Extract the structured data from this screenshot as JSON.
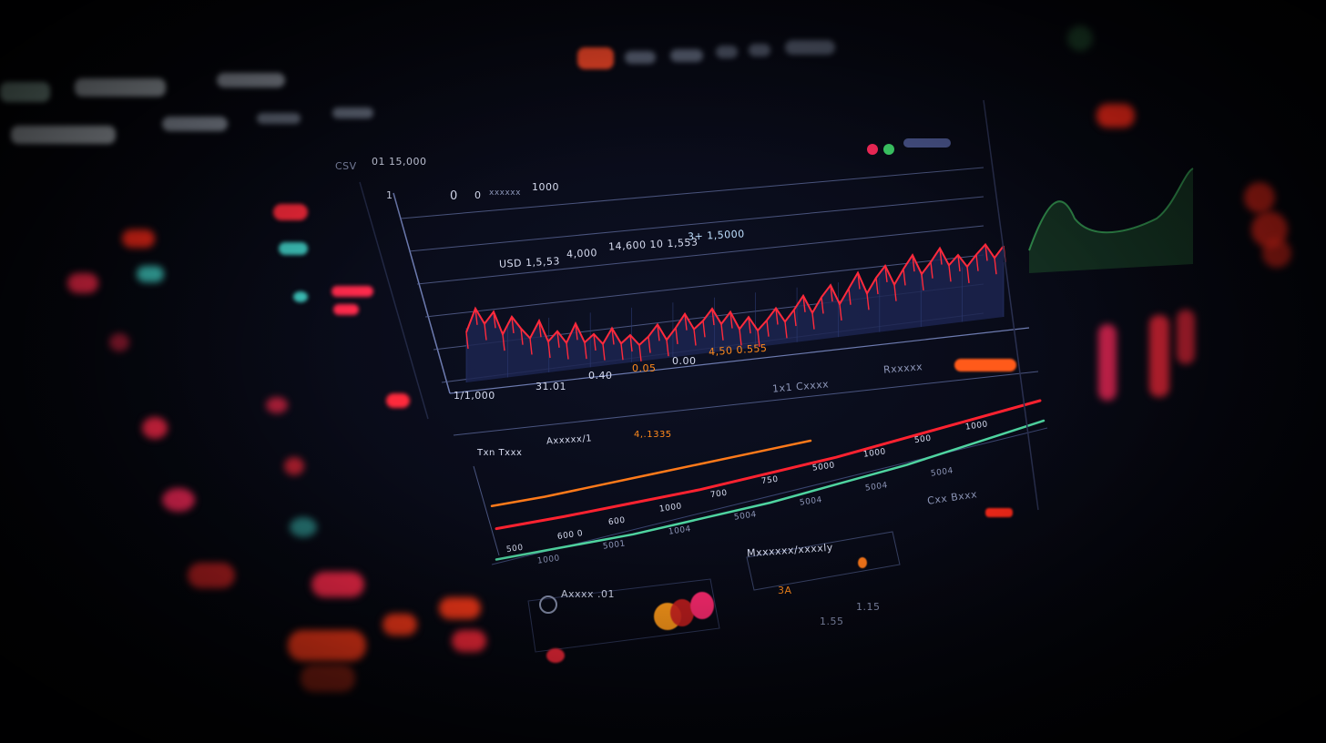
{
  "topbar": {
    "tabs": [
      "",
      "",
      ""
    ],
    "alert_color": "#ff4a2a"
  },
  "main_chart": {
    "header_left": "CSV",
    "header_value": "01 15,000",
    "axis_top": "1",
    "stat_a": "0",
    "stat_b": "0",
    "stat_label": "xxxxxx",
    "stat_value": "1000",
    "labels_row": [
      "USD 1,5,53",
      "4,000",
      "14,600 10 1,553",
      "3+ 1,5000"
    ],
    "bottom_labels": [
      "1/1,000",
      "31.01",
      "0.40",
      "0.05",
      "0.00",
      "4,50 0.555"
    ],
    "legend_right": "1x1 Cxxxx",
    "legend_right2": "Rxxxxx"
  },
  "chart_data": [
    {
      "type": "line",
      "series_color": "#ff2a3c",
      "fill_color": "#1c2550",
      "values": [
        55,
        80,
        62,
        74,
        48,
        66,
        52,
        40,
        58,
        34,
        44,
        30,
        50,
        28,
        36,
        24,
        40,
        22,
        30,
        18,
        26,
        38,
        20,
        32,
        46,
        28,
        36,
        48,
        30,
        42,
        22,
        34,
        18,
        28,
        40,
        24,
        36,
        50,
        30,
        46,
        58,
        36,
        52,
        68,
        44,
        60,
        72,
        50,
        66,
        80,
        58,
        70,
        84,
        64,
        74,
        60,
        72,
        82,
        66,
        78
      ]
    },
    {
      "type": "line",
      "series": [
        {
          "color": "#ff7a1a",
          "values": [
            10,
            20,
            32,
            44,
            56,
            68,
            80
          ]
        },
        {
          "color": "#ff2230",
          "values": [
            5,
            14,
            24,
            34,
            46,
            58,
            72,
            86,
            100
          ]
        },
        {
          "color": "#4fd4a0",
          "values": [
            2,
            10,
            18,
            28,
            38,
            50,
            62,
            76,
            90
          ]
        }
      ]
    }
  ],
  "trend_chart": {
    "title": "Txn Txxx",
    "subtitle": "Axxxxx/1",
    "value": "4,.1335",
    "point_labels": [
      "500",
      "600 0",
      "600",
      "1000",
      "700",
      "750",
      "5000",
      "1000",
      "500",
      "1000"
    ],
    "sub_labels": [
      "1000",
      "5001",
      "1004",
      "5004",
      "5004",
      "5004",
      "5004"
    ]
  },
  "widgets": {
    "gauge_label": "Axxxx .01",
    "activity_title": "Mxxxxxx/xxxxly",
    "activity_value": "3A",
    "misc_a": "1.55",
    "misc_b": "1.15",
    "right_title": "Cxx Bxxx"
  },
  "colors": {
    "accent_red": "#ff2a3c",
    "accent_orange": "#ff7a1a",
    "accent_teal": "#3fc9c0",
    "accent_green": "#3fb860"
  }
}
